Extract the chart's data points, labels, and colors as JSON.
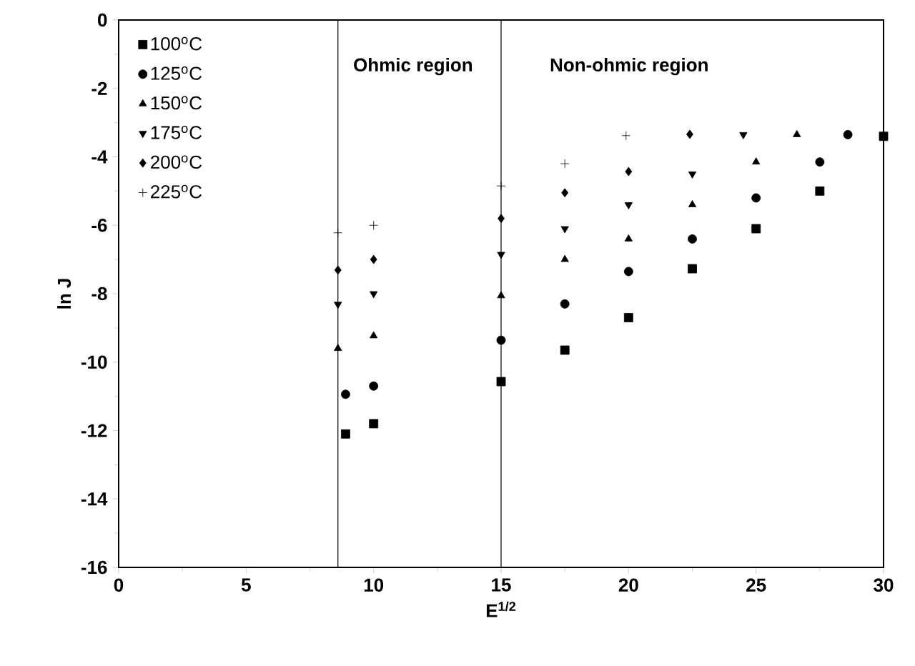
{
  "chart_data": {
    "type": "scatter",
    "xlabel": "E$^{1/2}$",
    "ylabel": "ln J",
    "xlim": [
      0,
      30
    ],
    "ylim": [
      -16,
      0
    ],
    "xticks": [
      0,
      5,
      10,
      15,
      20,
      25,
      30
    ],
    "yticks": [
      0,
      -2,
      -4,
      -6,
      -8,
      -10,
      -12,
      -14,
      -16
    ],
    "legend": "top left",
    "grid": false,
    "ref_lines": [
      {
        "axis": "x",
        "value": 8.6,
        "color": "#000000"
      },
      {
        "axis": "x",
        "value": 15,
        "color": "#000000"
      }
    ],
    "annotations": [
      "Ohmic region",
      "Non-ohmic region"
    ],
    "series": [
      {
        "name": "100$^{o}$C",
        "color": "#000000",
        "marker": "square",
        "x": [
          8.9,
          10,
          15,
          17.5,
          20,
          22.5,
          25,
          27.5,
          30
        ],
        "values": [
          -12.1,
          -11.8,
          -10.57,
          -9.65,
          -8.7,
          -7.27,
          -6.1,
          -5.0,
          -3.4
        ]
      },
      {
        "name": "125$^{o}$C",
        "color": "#000000",
        "marker": "circle",
        "x": [
          8.9,
          10,
          15,
          17.5,
          20,
          22.5,
          25,
          27.5,
          28.6
        ],
        "values": [
          -10.94,
          -10.7,
          -9.36,
          -8.3,
          -7.35,
          -6.4,
          -5.2,
          -4.15,
          -3.35
        ]
      },
      {
        "name": "150$^{o}$C",
        "color": "#000000",
        "marker": "triangle",
        "x": [
          8.6,
          10,
          15,
          17.5,
          20,
          22.5,
          25,
          26.6
        ],
        "values": [
          -9.6,
          -9.23,
          -8.06,
          -7.0,
          -6.4,
          -5.4,
          -4.15,
          -3.35
        ]
      },
      {
        "name": "175$^{o}$C",
        "color": "#000000",
        "marker": "triangle-down",
        "x": [
          8.6,
          10,
          15,
          17.5,
          20,
          22.5,
          24.5
        ],
        "values": [
          -8.31,
          -8.0,
          -6.85,
          -6.1,
          -5.4,
          -4.5,
          -3.35
        ]
      },
      {
        "name": "200$^{o}$C",
        "color": "#000000",
        "marker": "diamond",
        "x": [
          8.6,
          10,
          15,
          17.5,
          20,
          22.4
        ],
        "values": [
          -7.31,
          -7.0,
          -5.8,
          -5.05,
          -4.43,
          -3.34
        ]
      },
      {
        "name": "225$^{o}$C",
        "color": "#000000",
        "marker": "cross",
        "x": [
          8.6,
          10,
          15,
          17.5,
          19.9
        ],
        "values": [
          -6.22,
          -6.0,
          -4.85,
          -4.2,
          -3.38
        ]
      }
    ]
  }
}
